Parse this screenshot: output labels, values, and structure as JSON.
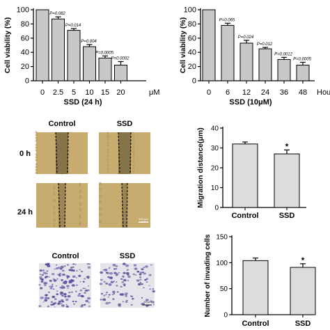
{
  "chart_data": [
    {
      "type": "bar",
      "ylabel": "Cell viability (%)",
      "xlabel": "SSD (24 h)",
      "x_unit": "μM",
      "categories": [
        "0",
        "2.5",
        "5",
        "10",
        "15",
        "20"
      ],
      "values": [
        100,
        87,
        71,
        48,
        32,
        22
      ],
      "errors": [
        0,
        3,
        2.5,
        3,
        3,
        5
      ],
      "annotations": [
        "",
        "P=0.082",
        "P=0.014",
        "P=0.004",
        "P=0.0005",
        "P=0.0002"
      ],
      "ylim": [
        0,
        100
      ],
      "yticks": [
        "0",
        "20",
        "40",
        "60",
        "80",
        "100"
      ],
      "bar_color": "#c8c8c8"
    },
    {
      "type": "bar",
      "ylabel": "Cell viability (%)",
      "xlabel": "SSD (10μM)",
      "x_unit": "Hou",
      "categories": [
        "0",
        "6",
        "12",
        "24",
        "36",
        "48"
      ],
      "values": [
        100,
        78,
        53,
        45,
        30,
        22
      ],
      "errors": [
        0,
        3,
        4,
        2,
        3,
        4
      ],
      "annotations": [
        "",
        "P=0.065",
        "P=0.024",
        "P=0.012",
        "P=0.0012",
        "P=0.0005"
      ],
      "ylim": [
        0,
        100
      ],
      "yticks": [
        "0",
        "20",
        "40",
        "60",
        "80",
        "100"
      ],
      "bar_color": "#c8c8c8"
    },
    {
      "type": "bar",
      "ylabel": "Migration distance(μm)",
      "categories": [
        "Control",
        "SSD"
      ],
      "values": [
        32,
        27
      ],
      "errors": [
        1,
        2
      ],
      "annotations": [
        "",
        "*"
      ],
      "ylim": [
        0,
        40
      ],
      "yticks": [
        "0",
        "10",
        "20",
        "30",
        "40"
      ],
      "bar_color": "#dcdcdc"
    },
    {
      "type": "bar",
      "ylabel": "Number of invading cells",
      "categories": [
        "Control",
        "SSD"
      ],
      "values": [
        104,
        91
      ],
      "errors": [
        5,
        7
      ],
      "annotations": [
        "",
        "*"
      ],
      "ylim": [
        0,
        150
      ],
      "yticks": [
        "0",
        "50",
        "100",
        "150"
      ],
      "bar_color": "#dcdcdc"
    }
  ],
  "wound_assay": {
    "column_labels": [
      "Control",
      "SSD"
    ],
    "row_labels": [
      "0 h",
      "24 h"
    ],
    "scale_bar": "500 μm",
    "background_color": "#c8ab6e",
    "gap_color": "#7a6840"
  },
  "invasion_assay": {
    "column_labels": [
      "Control",
      "SSD"
    ],
    "scale_bar": "50 μm",
    "cell_color": "#5b4a9a",
    "background_color": "#e6e4ea"
  }
}
